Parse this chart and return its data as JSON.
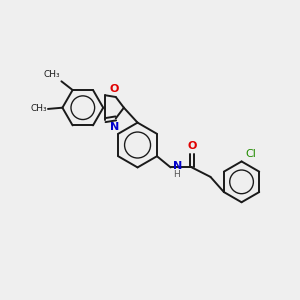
{
  "background_color": "#efefef",
  "bond_color": "#1a1a1a",
  "atom_colors": {
    "O": "#e00000",
    "N": "#0000cc",
    "Cl": "#228b00",
    "C": "#1a1a1a",
    "H": "#555555"
  },
  "figsize": [
    3.0,
    3.0
  ],
  "dpi": 100,
  "xlim": [
    0,
    12
  ],
  "ylim": [
    0,
    12
  ]
}
